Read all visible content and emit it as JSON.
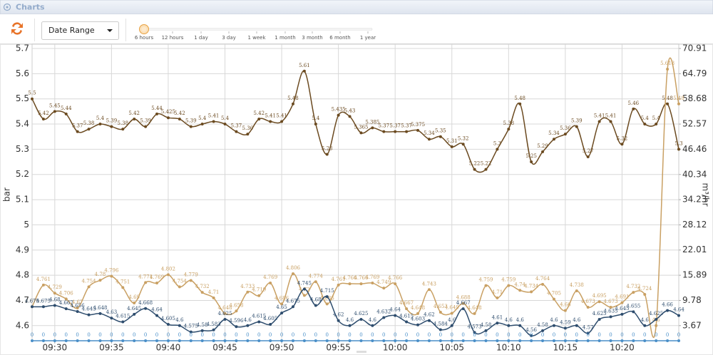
{
  "ui": {
    "panel_title": "Charts",
    "date_range": "Date Range",
    "range_options": [
      "6 hours",
      "12 hours",
      "1 day",
      "3 day",
      "1 week",
      "1 month",
      "3 month",
      "6 month",
      "1 year"
    ]
  },
  "chart_data": {
    "type": "line",
    "y_label": "bar",
    "y2_label": "m³/hr",
    "x": [
      "09:28",
      "09:29",
      "09:30",
      "09:31",
      "09:32",
      "09:33",
      "09:34",
      "09:35",
      "09:36",
      "09:37",
      "09:38",
      "09:39",
      "09:40",
      "09:41",
      "09:42",
      "09:43",
      "09:44",
      "09:45",
      "09:46",
      "09:47",
      "09:48",
      "09:49",
      "09:50",
      "09:51",
      "09:52",
      "09:53",
      "09:54",
      "09:55",
      "09:56",
      "09:57",
      "09:58",
      "09:59",
      "10:00",
      "10:01",
      "10:02",
      "10:03",
      "10:04",
      "10:05",
      "10:06",
      "10:07",
      "10:08",
      "10:09",
      "10:10",
      "10:11",
      "10:12",
      "10:13",
      "10:14",
      "10:15",
      "10:16",
      "10:17",
      "10:18",
      "10:19",
      "10:20",
      "10:21",
      "10:22",
      "10:23",
      "10:24",
      "10:25"
    ],
    "xlim": [
      "09:28",
      "10:25"
    ],
    "xticks": [
      "09:30",
      "09:35",
      "09:40",
      "09:45",
      "09:50",
      "09:55",
      "10:00",
      "10:05",
      "10:10",
      "10:15",
      "10:20"
    ],
    "ylim": [
      4.54,
      5.7
    ],
    "yticks": [
      4.6,
      4.7,
      4.8,
      4.9,
      5,
      5.1,
      5.2,
      5.3,
      5.4,
      5.5,
      5.6,
      5.7
    ],
    "y2lim": [
      0,
      70.91
    ],
    "y2ticks": [
      3.67,
      9.78,
      15.89,
      22.01,
      28.12,
      34.23,
      40.34,
      46.46,
      52.57,
      58.68,
      64.79,
      70.91
    ],
    "grid": true,
    "series": [
      {
        "color": "#6b4a20",
        "values": [
          5.5,
          5.42,
          5.45,
          5.44,
          5.37,
          5.38,
          5.4,
          5.39,
          5.38,
          5.42,
          5.39,
          5.44,
          5.425,
          5.42,
          5.39,
          5.4,
          5.41,
          5.4,
          5.37,
          5.36,
          5.42,
          5.41,
          5.41,
          5.48,
          5.61,
          5.4,
          5.28,
          5.435,
          5.43,
          5.365,
          5.385,
          5.37,
          5.37,
          5.37,
          5.375,
          5.34,
          5.35,
          5.31,
          5.32,
          5.22,
          5.22,
          5.3,
          5.38,
          5.48,
          5.25,
          5.29,
          5.34,
          5.36,
          5.39,
          5.27,
          5.41,
          5.41,
          5.32,
          5.46,
          5.4,
          5.4,
          5.48,
          5.3
        ]
      },
      {
        "color": "#c9a063",
        "values": [
          4.675,
          4.761,
          4.729,
          4.706,
          4.67,
          4.754,
          4.78,
          4.796,
          4.751,
          4.69,
          4.771,
          4.769,
          4.802,
          4.754,
          4.779,
          4.732,
          4.71,
          4.648,
          4.658,
          4.733,
          4.719,
          4.769,
          4.686,
          4.806,
          4.72,
          4.774,
          4.686,
          4.761,
          4.766,
          4.766,
          4.769,
          4.749,
          4.766,
          4.667,
          4.648,
          4.743,
          4.653,
          4.649,
          4.688,
          4.648,
          4.759,
          4.71,
          4.759,
          4.74,
          4.734,
          4.764,
          4.705,
          4.66,
          4.738,
          4.673,
          4.695,
          4.673,
          4.691,
          4.732,
          4.724,
          4.6,
          5.618,
          5.48
        ]
      },
      {
        "color": "#2e4d6e",
        "values": [
          4.675,
          4.675,
          4.68,
          4.667,
          4.656,
          4.643,
          4.648,
          4.63,
          4.615,
          4.645,
          4.668,
          4.64,
          4.605,
          4.6,
          4.575,
          4.58,
          4.583,
          4.625,
          4.596,
          4.6,
          4.615,
          4.605,
          4.65,
          4.675,
          4.745,
          4.68,
          4.715,
          4.62,
          4.6,
          4.625,
          4.6,
          4.632,
          4.64,
          4.615,
          4.603,
          4.62,
          4.584,
          4.6,
          4.667,
          4.573,
          4.58,
          4.61,
          4.6,
          4.6,
          4.56,
          4.58,
          4.6,
          4.59,
          4.6,
          4.57,
          4.625,
          4.635,
          4.645,
          4.655,
          4.6,
          4.625,
          4.66,
          4.64
        ]
      },
      {
        "color": "#4a8fc8",
        "axis": "y2",
        "values": [
          0,
          0,
          0,
          0,
          0,
          0,
          0,
          0,
          0,
          0,
          0,
          0,
          0,
          0,
          0,
          0,
          0,
          0,
          0,
          0,
          0,
          0,
          0,
          0,
          0,
          0,
          0,
          0,
          0,
          0,
          0,
          0,
          0,
          0,
          0,
          0,
          0,
          0,
          0,
          0,
          0,
          0,
          0,
          0,
          0,
          0,
          0,
          0,
          0,
          0,
          0,
          0,
          0,
          0,
          0,
          0,
          0,
          0
        ]
      }
    ]
  }
}
